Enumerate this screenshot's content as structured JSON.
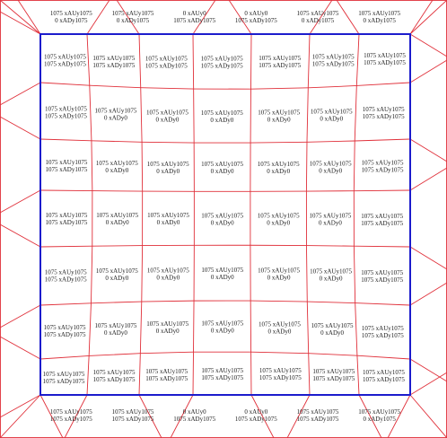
{
  "mesh": {
    "top_strip": [
      [
        "1075 xAUy1075",
        "0 xADy1075"
      ],
      [
        "1075 xAUy1075",
        "0 xADy1075"
      ],
      [
        "0 xAUy0",
        "1075 xADy1075"
      ],
      [
        "0 xAUy0",
        "1075 xADy1075"
      ],
      [
        "1075 xAUy1075",
        "0 xADy1075"
      ],
      [
        "1075 xAUy1075",
        "0 xADy1075"
      ]
    ],
    "bottom_strip": [
      [
        "1075 xAUy1075",
        "1075 xADy1075"
      ],
      [
        "1075 xAUy1075",
        "1075 xADy1075"
      ],
      [
        "0 xAUy0",
        "1075 xADy1075"
      ],
      [
        "0 xAUy0",
        "1075 xADy1075"
      ],
      [
        "1075 xAUy1075",
        "1075 xADy1075"
      ],
      [
        "1075 xAUy1075",
        "0 xADy1075"
      ]
    ],
    "cells": [
      [
        [
          "1075 xAUy1075",
          "1075 xADy1075"
        ],
        [
          "1075 xAUy1075",
          "1075 xADy1075"
        ],
        [
          "1075 xAUy1075",
          "1075 xADy1075"
        ],
        [
          "1075 xAUy1075",
          "1075 xADy1075"
        ],
        [
          "1075 xAUy1075",
          "1075 xADy1075"
        ],
        [
          "1075 xAUy1075",
          "1075 xADy1075"
        ],
        [
          "1075 xAUy1075",
          "1075 xADy1075"
        ]
      ],
      [
        [
          "1075 xAUy1075",
          "1075 xADy1075"
        ],
        [
          "1075 xAUy1075",
          "0 xADy0"
        ],
        [
          "1075 xAUy1075",
          "0 xADy0"
        ],
        [
          "1075 xAUy1075",
          "0 xADy0"
        ],
        [
          "1075 xAUy1075",
          "0 xADy0"
        ],
        [
          "1075 xAUy1075",
          "0 xADy0"
        ],
        [
          "1075 xAUy1075",
          "1075 xADy1075"
        ]
      ],
      [
        [
          "1075 xAUy1075",
          "1075 xADy1075"
        ],
        [
          "1075 xAUy1075",
          "0 xADy0"
        ],
        [
          "1075 xAUy1075",
          "0 xADy0"
        ],
        [
          "1075 xAUy1075",
          "0 xADy0"
        ],
        [
          "1075 xAUy1075",
          "0 xADy0"
        ],
        [
          "1075 xAUy1075",
          "0 xADy0"
        ],
        [
          "1075 xAUy1075",
          "1075 xADy1075"
        ]
      ],
      [
        [
          "1075 xAUy1075",
          "1075 xADy1075"
        ],
        [
          "1075 xAUy1075",
          "0 xADy0"
        ],
        [
          "1075 xAUy1075",
          "0 xADy0"
        ],
        [
          "1075 xAUy1075",
          "0 xADy0"
        ],
        [
          "1075 xAUy1075",
          "0 xADy0"
        ],
        [
          "1075 xAUy1075",
          "0 xADy0"
        ],
        [
          "1075 xAUy1075",
          "1075 xADy1075"
        ]
      ],
      [
        [
          "1075 xAUy1075",
          "1075 xADy1075"
        ],
        [
          "1075 xAUy1075",
          "0 xADy0"
        ],
        [
          "1075 xAUy1075",
          "0 xADy0"
        ],
        [
          "1075 xAUy1075",
          "0 xADy0"
        ],
        [
          "1075 xAUy1075",
          "0 xADy0"
        ],
        [
          "1075 xAUy1075",
          "0 xADy0"
        ],
        [
          "1075 xAUy1075",
          "1075 xADy1075"
        ]
      ],
      [
        [
          "1075 xAUy1075",
          "1075 xADy1075"
        ],
        [
          "1075 xAUy1075",
          "0 xADy0"
        ],
        [
          "1075 xAUy1075",
          "0 xADy0"
        ],
        [
          "1075 xAUy1075",
          "0 xADy0"
        ],
        [
          "1075 xAUy1075",
          "0 xADy0"
        ],
        [
          "1075 xAUy1075",
          "0 xADy0"
        ],
        [
          "1075 xAUy1075",
          "1075 xADy1075"
        ]
      ],
      [
        [
          "1075 xAUy1075",
          "1075 xADy1075"
        ],
        [
          "1075 xAUy1075",
          "1075 xADy1075"
        ],
        [
          "1075 xAUy1075",
          "1075 xADy1075"
        ],
        [
          "1075 xAUy1075",
          "1075 xADy1075"
        ],
        [
          "1075 xAUy1075",
          "1075 xADy1075"
        ],
        [
          "1075 xAUy1075",
          "1075 xADy1075"
        ],
        [
          "1075 xAUy1075",
          "1075 xADy1075"
        ]
      ]
    ]
  }
}
